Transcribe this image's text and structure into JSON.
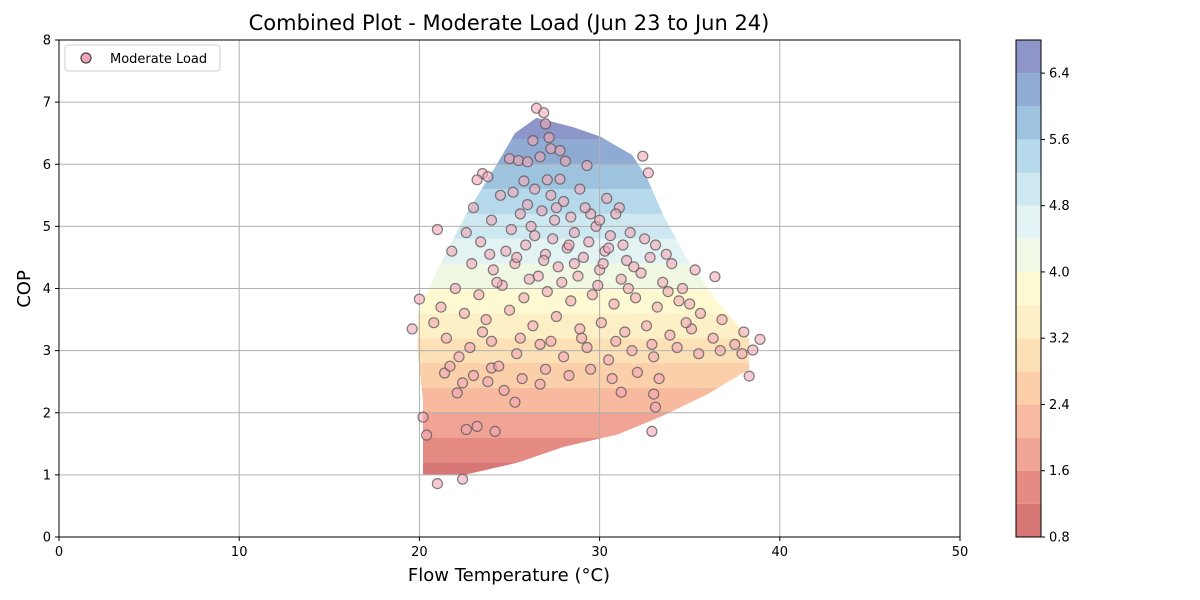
{
  "chart_data": {
    "type": "scatter",
    "title": "Combined Plot - Moderate Load (Jun 23 to Jun 24)",
    "xlabel": "Flow Temperature (°C)",
    "ylabel": "COP",
    "xlim": [
      0,
      50
    ],
    "ylim": [
      0,
      8
    ],
    "xticks": [
      0,
      10,
      20,
      30,
      40,
      50
    ],
    "yticks": [
      0,
      1,
      2,
      3,
      4,
      5,
      6,
      7,
      8
    ],
    "grid": true,
    "legend": {
      "placement": "top-left",
      "entries": [
        "Moderate Load"
      ]
    },
    "series": [
      {
        "name": "Moderate Load",
        "marker_color": "#f4a6b7",
        "marker_edge": "#555555",
        "points": [
          [
            26.5,
            6.9
          ],
          [
            26.9,
            6.83
          ],
          [
            27.0,
            6.65
          ],
          [
            27.2,
            6.43
          ],
          [
            26.3,
            6.38
          ],
          [
            27.3,
            6.25
          ],
          [
            27.8,
            6.22
          ],
          [
            26.7,
            6.12
          ],
          [
            32.4,
            6.13
          ],
          [
            25.0,
            6.09
          ],
          [
            25.5,
            6.06
          ],
          [
            26.0,
            6.04
          ],
          [
            28.1,
            6.05
          ],
          [
            29.3,
            5.98
          ],
          [
            32.7,
            5.86
          ],
          [
            23.5,
            5.85
          ],
          [
            23.8,
            5.8
          ],
          [
            23.2,
            5.75
          ],
          [
            25.8,
            5.73
          ],
          [
            27.1,
            5.75
          ],
          [
            27.8,
            5.76
          ],
          [
            21.0,
            4.95
          ],
          [
            20.0,
            3.83
          ],
          [
            19.6,
            3.35
          ],
          [
            36.4,
            4.19
          ],
          [
            38.9,
            3.18
          ],
          [
            38.5,
            3.01
          ],
          [
            38.3,
            2.59
          ],
          [
            20.2,
            1.93
          ],
          [
            20.4,
            1.64
          ],
          [
            21.0,
            0.86
          ],
          [
            22.4,
            0.93
          ],
          [
            32.9,
            1.7
          ],
          [
            22.6,
            1.73
          ],
          [
            23.2,
            1.78
          ],
          [
            24.2,
            1.7
          ],
          [
            25.3,
            2.17
          ],
          [
            22.1,
            2.32
          ],
          [
            22.4,
            2.48
          ],
          [
            24.7,
            2.36
          ],
          [
            26.7,
            2.46
          ],
          [
            33.1,
            2.09
          ],
          [
            33.0,
            2.3
          ],
          [
            31.2,
            2.33
          ],
          [
            21.4,
            2.64
          ],
          [
            22.2,
            2.9
          ],
          [
            23.8,
            2.5
          ],
          [
            24.0,
            2.72
          ],
          [
            24.5,
            5.5
          ],
          [
            25.2,
            5.55
          ],
          [
            26.4,
            5.6
          ],
          [
            27.3,
            5.5
          ],
          [
            28.0,
            5.4
          ],
          [
            28.9,
            5.6
          ],
          [
            29.5,
            5.2
          ],
          [
            30.4,
            5.45
          ],
          [
            31.1,
            5.3
          ],
          [
            23.0,
            5.3
          ],
          [
            24.0,
            5.1
          ],
          [
            25.6,
            5.2
          ],
          [
            26.2,
            5.0
          ],
          [
            27.5,
            5.1
          ],
          [
            28.6,
            4.9
          ],
          [
            29.8,
            5.0
          ],
          [
            30.6,
            4.85
          ],
          [
            31.7,
            4.9
          ],
          [
            32.5,
            4.8
          ],
          [
            33.1,
            4.7
          ],
          [
            22.6,
            4.9
          ],
          [
            23.4,
            4.75
          ],
          [
            24.8,
            4.6
          ],
          [
            25.9,
            4.7
          ],
          [
            27.0,
            4.55
          ],
          [
            28.2,
            4.65
          ],
          [
            29.1,
            4.5
          ],
          [
            30.3,
            4.6
          ],
          [
            31.5,
            4.45
          ],
          [
            32.8,
            4.5
          ],
          [
            34.0,
            4.4
          ],
          [
            21.8,
            4.6
          ],
          [
            22.9,
            4.4
          ],
          [
            24.1,
            4.3
          ],
          [
            25.3,
            4.4
          ],
          [
            26.6,
            4.2
          ],
          [
            27.7,
            4.35
          ],
          [
            28.8,
            4.2
          ],
          [
            30.0,
            4.3
          ],
          [
            31.2,
            4.15
          ],
          [
            32.3,
            4.25
          ],
          [
            33.5,
            4.1
          ],
          [
            34.6,
            4.0
          ],
          [
            35.3,
            4.3
          ],
          [
            22.0,
            4.0
          ],
          [
            23.3,
            3.9
          ],
          [
            24.6,
            4.05
          ],
          [
            25.8,
            3.85
          ],
          [
            27.1,
            3.95
          ],
          [
            28.4,
            3.8
          ],
          [
            29.6,
            3.9
          ],
          [
            30.8,
            3.75
          ],
          [
            32.0,
            3.85
          ],
          [
            33.2,
            3.7
          ],
          [
            34.4,
            3.8
          ],
          [
            35.6,
            3.6
          ],
          [
            36.8,
            3.5
          ],
          [
            21.2,
            3.7
          ],
          [
            22.5,
            3.6
          ],
          [
            23.7,
            3.5
          ],
          [
            25.0,
            3.65
          ],
          [
            26.3,
            3.4
          ],
          [
            27.6,
            3.55
          ],
          [
            28.9,
            3.35
          ],
          [
            30.1,
            3.45
          ],
          [
            31.4,
            3.3
          ],
          [
            32.6,
            3.4
          ],
          [
            33.9,
            3.25
          ],
          [
            35.1,
            3.35
          ],
          [
            36.3,
            3.2
          ],
          [
            37.5,
            3.1
          ],
          [
            38.0,
            3.3
          ],
          [
            20.8,
            3.45
          ],
          [
            21.5,
            3.2
          ],
          [
            22.8,
            3.05
          ],
          [
            24.0,
            3.15
          ],
          [
            25.4,
            2.95
          ],
          [
            26.7,
            3.1
          ],
          [
            28.0,
            2.9
          ],
          [
            29.3,
            3.05
          ],
          [
            30.5,
            2.85
          ],
          [
            31.8,
            3.0
          ],
          [
            33.0,
            2.9
          ],
          [
            34.3,
            3.05
          ],
          [
            35.5,
            2.95
          ],
          [
            36.7,
            3.0
          ],
          [
            37.9,
            2.95
          ],
          [
            21.7,
            2.75
          ],
          [
            23.0,
            2.6
          ],
          [
            24.4,
            2.75
          ],
          [
            25.7,
            2.55
          ],
          [
            27.0,
            2.7
          ],
          [
            28.3,
            2.6
          ],
          [
            29.5,
            2.7
          ],
          [
            30.7,
            2.55
          ],
          [
            32.1,
            2.65
          ],
          [
            33.3,
            2.55
          ],
          [
            26.0,
            5.35
          ],
          [
            26.8,
            5.25
          ],
          [
            27.6,
            5.3
          ],
          [
            28.4,
            5.15
          ],
          [
            29.2,
            5.3
          ],
          [
            30.0,
            5.1
          ],
          [
            30.9,
            5.2
          ],
          [
            25.1,
            4.95
          ],
          [
            26.4,
            4.85
          ],
          [
            27.4,
            4.8
          ],
          [
            28.3,
            4.7
          ],
          [
            29.4,
            4.75
          ],
          [
            30.5,
            4.65
          ],
          [
            31.3,
            4.7
          ],
          [
            23.9,
            4.55
          ],
          [
            25.4,
            4.5
          ],
          [
            26.9,
            4.45
          ],
          [
            28.6,
            4.4
          ],
          [
            30.2,
            4.4
          ],
          [
            31.9,
            4.35
          ],
          [
            33.7,
            4.55
          ],
          [
            24.3,
            4.1
          ],
          [
            26.1,
            4.15
          ],
          [
            27.9,
            4.1
          ],
          [
            29.9,
            4.05
          ],
          [
            31.6,
            4.0
          ],
          [
            33.8,
            3.95
          ],
          [
            35.0,
            3.75
          ],
          [
            23.5,
            3.3
          ],
          [
            25.6,
            3.2
          ],
          [
            27.3,
            3.15
          ],
          [
            29.0,
            3.2
          ],
          [
            30.9,
            3.15
          ],
          [
            32.9,
            3.1
          ],
          [
            34.8,
            3.45
          ]
        ]
      }
    ],
    "colorbar": {
      "ticks": [
        "0.8",
        "1.6",
        "2.4",
        "3.2",
        "4.0",
        "4.8",
        "5.6",
        "6.4"
      ],
      "range": [
        0.8,
        6.8
      ],
      "levels": [
        0.8,
        1.2,
        1.6,
        2.0,
        2.4,
        2.8,
        3.2,
        3.6,
        4.0,
        4.4,
        4.8,
        5.2,
        5.6,
        6.0,
        6.4,
        6.8
      ],
      "colors": [
        "#d0605f",
        "#e2776d",
        "#ef9582",
        "#f7ae8f",
        "#fbc79b",
        "#fcdcaa",
        "#fdedbc",
        "#fdf9cb",
        "#eef7e0",
        "#dff1f1",
        "#c6e4ef",
        "#a9d2e8",
        "#8db9da",
        "#7c9dcc",
        "#7a84c0"
      ]
    },
    "contour_boundary": [
      [
        20.2,
        1.0
      ],
      [
        20.6,
        1.0
      ],
      [
        22.5,
        1.0
      ],
      [
        25.5,
        1.2
      ],
      [
        28.0,
        1.45
      ],
      [
        31.0,
        1.65
      ],
      [
        33.5,
        1.95
      ],
      [
        36.0,
        2.3
      ],
      [
        38.3,
        2.7
      ],
      [
        38.3,
        3.2
      ],
      [
        36.5,
        3.8
      ],
      [
        34.8,
        4.5
      ],
      [
        33.5,
        5.2
      ],
      [
        32.6,
        5.8
      ],
      [
        31.8,
        6.15
      ],
      [
        30.0,
        6.45
      ],
      [
        28.5,
        6.6
      ],
      [
        26.5,
        6.75
      ],
      [
        25.3,
        6.5
      ],
      [
        24.3,
        6.0
      ],
      [
        22.6,
        5.2
      ],
      [
        21.0,
        4.3
      ],
      [
        19.9,
        3.6
      ],
      [
        19.9,
        3.0
      ],
      [
        20.2,
        2.2
      ],
      [
        20.2,
        1.6
      ],
      [
        20.2,
        1.0
      ]
    ]
  }
}
